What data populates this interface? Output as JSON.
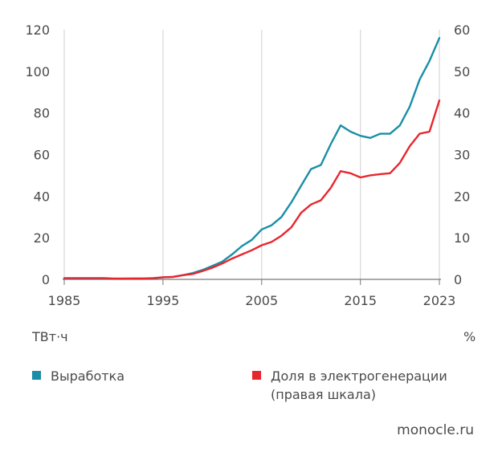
{
  "chart_data": {
    "type": "line",
    "title": "",
    "xlabel": "",
    "x_ticks": [
      "1985",
      "1995",
      "2005",
      "2015",
      "2023"
    ],
    "xlim": [
      1985,
      2023
    ],
    "left_axis": {
      "unit_label": "ТВт·ч",
      "ylim": [
        0,
        120
      ],
      "ticks": [
        "0",
        "20",
        "40",
        "60",
        "80",
        "100",
        "120"
      ]
    },
    "right_axis": {
      "unit_label": "%",
      "ylim": [
        0,
        60
      ],
      "ticks": [
        "0",
        "10",
        "20",
        "30",
        "40",
        "50",
        "60"
      ]
    },
    "grid": "vertical",
    "legend_position": "bottom",
    "series": [
      {
        "name": "Выработка",
        "axis": "left",
        "color": "#1a8ea7",
        "x": [
          1985,
          1986,
          1987,
          1988,
          1989,
          1990,
          1991,
          1992,
          1993,
          1994,
          1995,
          1996,
          1997,
          1998,
          1999,
          2000,
          2001,
          2002,
          2003,
          2004,
          2005,
          2006,
          2007,
          2008,
          2009,
          2010,
          2011,
          2012,
          2013,
          2014,
          2015,
          2016,
          2017,
          2018,
          2019,
          2020,
          2021,
          2022,
          2023
        ],
        "values": [
          0.3,
          0.3,
          0.3,
          0.3,
          0.3,
          0.3,
          0.3,
          0.4,
          0.4,
          0.5,
          1.0,
          1.2,
          2.0,
          3.0,
          4.5,
          6.5,
          8.5,
          12,
          16,
          19,
          24,
          26,
          30,
          37,
          45,
          53,
          55,
          65,
          74,
          71,
          69,
          68,
          70,
          70,
          74,
          83,
          96,
          105,
          116
        ]
      },
      {
        "name": "Доля в электрогенерации",
        "note": "(правая шкала)",
        "axis": "right",
        "color": "#e8262e",
        "x": [
          1985,
          1986,
          1987,
          1988,
          1989,
          1990,
          1991,
          1992,
          1993,
          1994,
          1995,
          1996,
          1997,
          1998,
          1999,
          2000,
          2001,
          2002,
          2003,
          2004,
          2005,
          2006,
          2007,
          2008,
          2009,
          2010,
          2011,
          2012,
          2013,
          2014,
          2015,
          2016,
          2017,
          2018,
          2019,
          2020,
          2021,
          2022,
          2023
        ],
        "values": [
          0.3,
          0.3,
          0.3,
          0.3,
          0.3,
          0.2,
          0.2,
          0.2,
          0.2,
          0.3,
          0.5,
          0.6,
          1.0,
          1.3,
          2.0,
          2.8,
          3.8,
          5.0,
          6.0,
          7.0,
          8.2,
          9.0,
          10.5,
          12.5,
          16.0,
          18.0,
          19.0,
          22.0,
          26.0,
          25.5,
          24.5,
          25.0,
          25.3,
          25.5,
          28.0,
          32.0,
          35.0,
          35.5,
          43.0
        ]
      }
    ]
  },
  "legend": {
    "item1": "Выработка",
    "item2": "Доля в электрогенерации",
    "item2_note": "(правая шкала)"
  },
  "source": "monocle.ru",
  "colors": {
    "series1": "#1a8ea7",
    "series2": "#e8262e",
    "grid": "#cfcfcf",
    "axis": "#777777"
  }
}
